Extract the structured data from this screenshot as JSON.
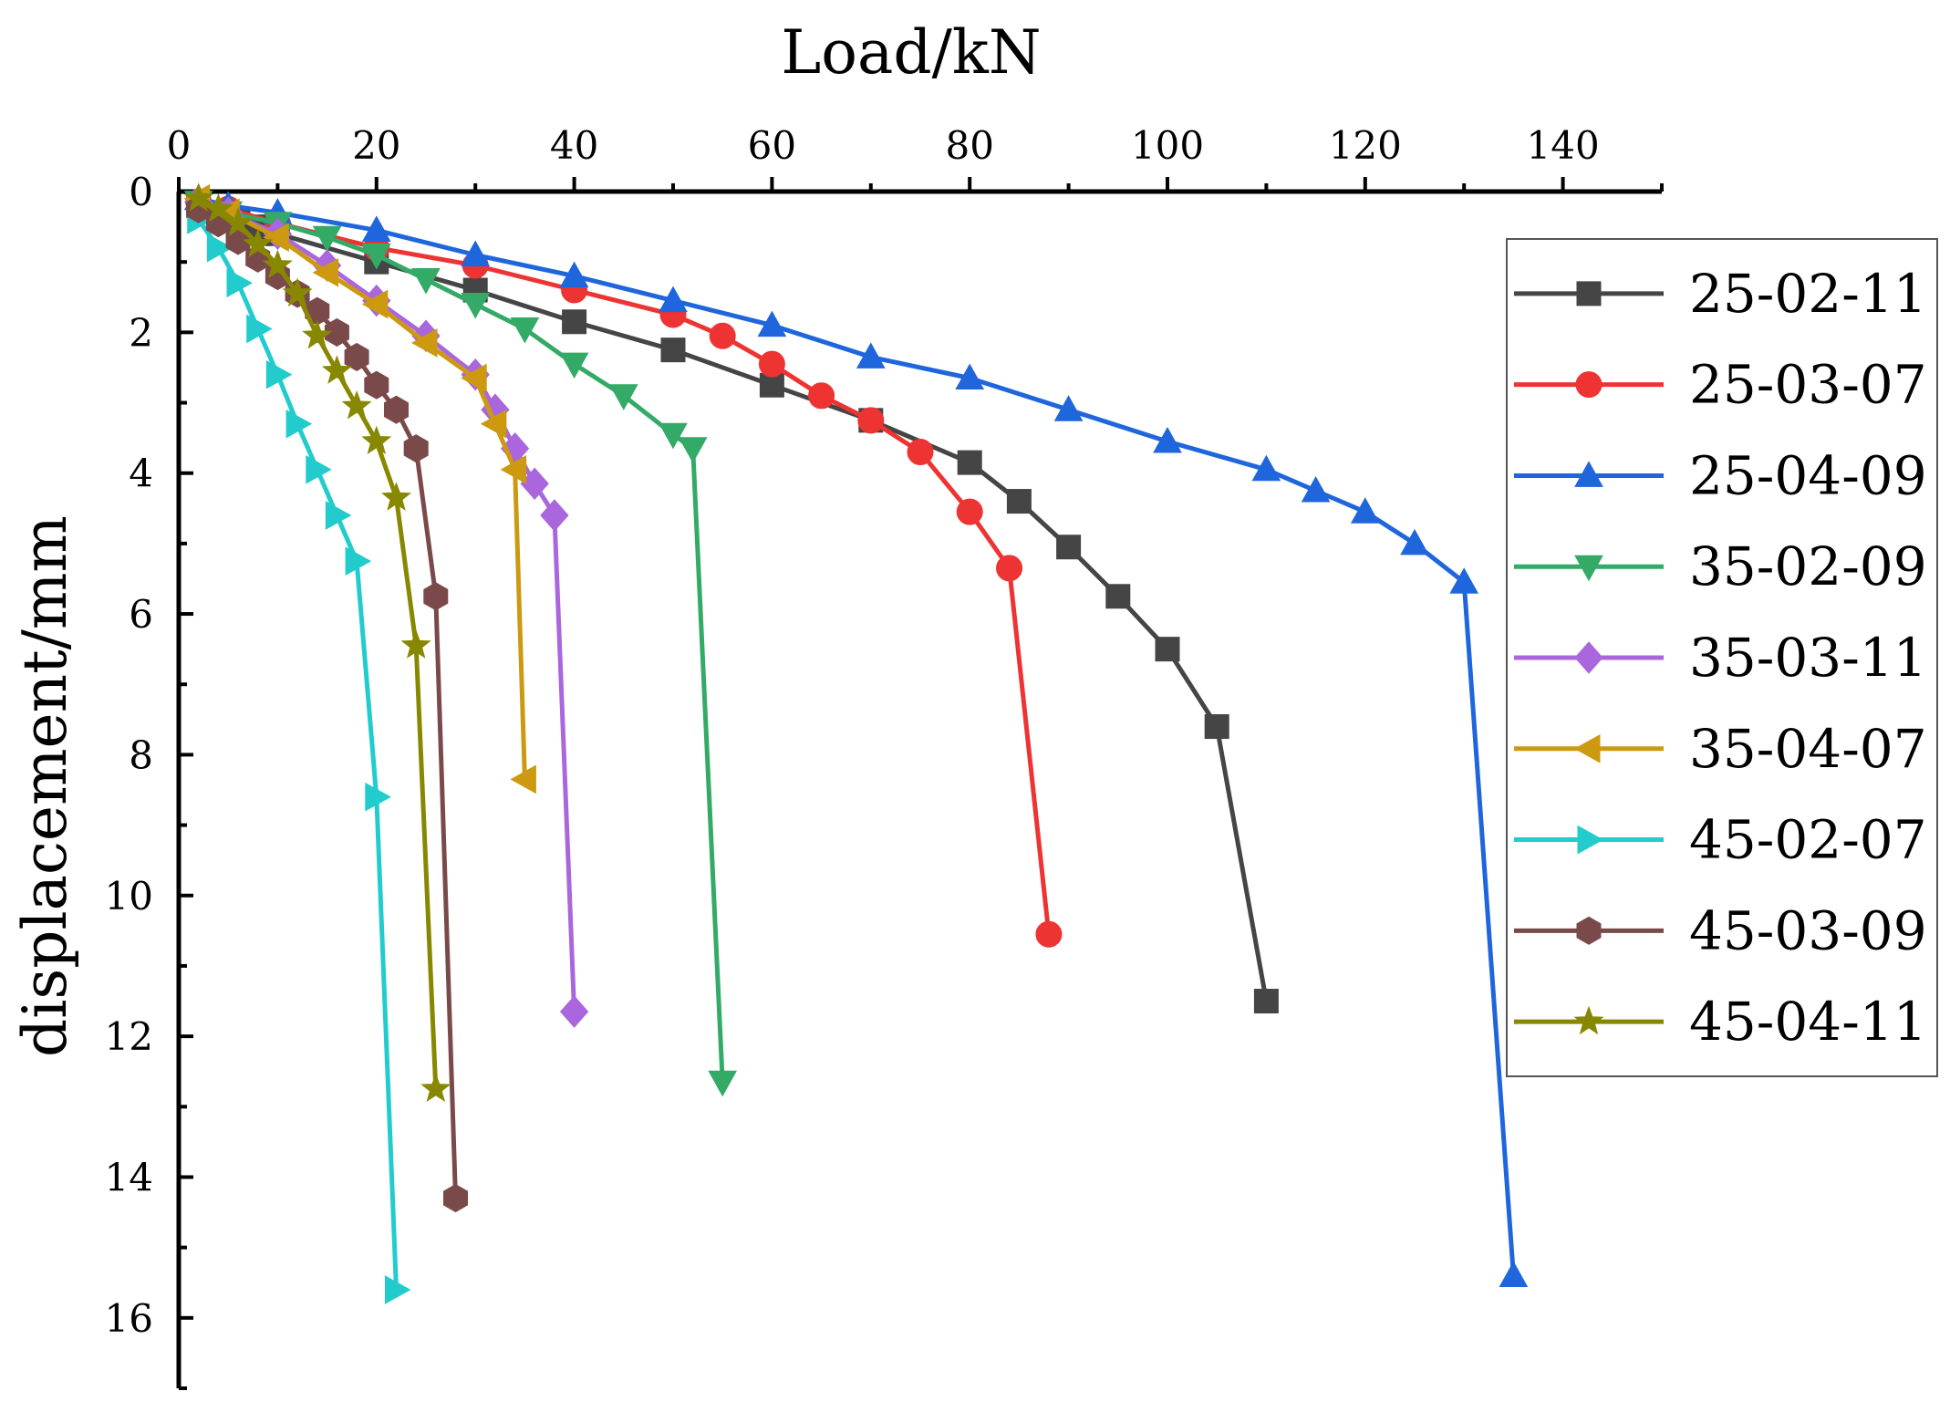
{
  "chart_data": {
    "type": "line",
    "title": "",
    "xlabel": "Load/kN",
    "ylabel": "displacement/mm",
    "xlim": [
      0,
      150
    ],
    "ylim": [
      0,
      17
    ],
    "y_inverted": true,
    "x_axis_position": "top",
    "x_ticks": [
      0,
      20,
      40,
      60,
      80,
      100,
      120,
      140
    ],
    "x_tick_labels": [
      "0",
      "20",
      "40",
      "60",
      "80",
      "100",
      "120",
      "140"
    ],
    "y_ticks": [
      0,
      2,
      4,
      6,
      8,
      10,
      12,
      14,
      16
    ],
    "y_tick_labels": [
      "0",
      "2",
      "4",
      "6",
      "8",
      "10",
      "12",
      "14",
      "16"
    ],
    "grid": false,
    "legend_position": "right",
    "series": [
      {
        "name": "25-02-11",
        "color": "#454545",
        "marker": "square",
        "x": [
          2,
          4,
          6,
          8,
          10,
          20,
          30,
          40,
          50,
          60,
          70,
          80,
          85,
          90,
          95,
          100,
          105,
          110
        ],
        "y": [
          0.2,
          0.3,
          0.4,
          0.5,
          0.6,
          1.0,
          1.4,
          1.85,
          2.25,
          2.75,
          3.25,
          3.85,
          4.4,
          5.05,
          5.75,
          6.5,
          7.6,
          11.5
        ]
      },
      {
        "name": "25-03-07",
        "color": "#ee3333",
        "marker": "circle",
        "x": [
          2,
          5,
          10,
          20,
          30,
          40,
          50,
          55,
          60,
          65,
          70,
          75,
          80,
          84,
          88
        ],
        "y": [
          0.15,
          0.25,
          0.45,
          0.8,
          1.05,
          1.4,
          1.75,
          2.05,
          2.45,
          2.9,
          3.25,
          3.7,
          4.55,
          5.35,
          10.55
        ]
      },
      {
        "name": "25-04-09",
        "color": "#1f66dd",
        "marker": "triangle-up",
        "x": [
          2,
          5,
          10,
          20,
          30,
          40,
          50,
          60,
          70,
          80,
          90,
          100,
          110,
          115,
          120,
          125,
          130,
          135
        ],
        "y": [
          0.1,
          0.2,
          0.3,
          0.55,
          0.9,
          1.2,
          1.55,
          1.9,
          2.35,
          2.65,
          3.1,
          3.55,
          3.95,
          4.25,
          4.55,
          5.0,
          5.55,
          15.4
        ]
      },
      {
        "name": "35-02-09",
        "color": "#33aa66",
        "marker": "triangle-down",
        "x": [
          2,
          5,
          10,
          15,
          20,
          25,
          30,
          35,
          40,
          45,
          50,
          52,
          55
        ],
        "y": [
          0.15,
          0.3,
          0.45,
          0.65,
          0.9,
          1.25,
          1.6,
          1.95,
          2.45,
          2.9,
          3.45,
          3.65,
          12.65
        ]
      },
      {
        "name": "35-03-11",
        "color": "#aa66dd",
        "marker": "diamond",
        "x": [
          2,
          5,
          10,
          15,
          20,
          25,
          30,
          32,
          34,
          36,
          38,
          40
        ],
        "y": [
          0.15,
          0.3,
          0.6,
          1.05,
          1.55,
          2.05,
          2.6,
          3.1,
          3.65,
          4.15,
          4.6,
          11.65
        ]
      },
      {
        "name": "35-04-07",
        "color": "#cc9911",
        "marker": "triangle-left",
        "x": [
          2,
          5,
          10,
          15,
          20,
          25,
          30,
          32,
          34,
          35
        ],
        "y": [
          0.1,
          0.3,
          0.65,
          1.15,
          1.6,
          2.15,
          2.65,
          3.3,
          3.95,
          8.35
        ]
      },
      {
        "name": "45-02-07",
        "color": "#22cccc",
        "marker": "triangle-right",
        "x": [
          2,
          4,
          6,
          8,
          10,
          12,
          14,
          16,
          18,
          20,
          22
        ],
        "y": [
          0.4,
          0.8,
          1.3,
          1.95,
          2.6,
          3.3,
          3.95,
          4.6,
          5.25,
          8.6,
          15.6
        ]
      },
      {
        "name": "45-03-09",
        "color": "#7a4a4a",
        "marker": "hexagon",
        "x": [
          2,
          4,
          6,
          8,
          10,
          12,
          14,
          16,
          18,
          20,
          22,
          24,
          26,
          28
        ],
        "y": [
          0.25,
          0.45,
          0.7,
          0.95,
          1.2,
          1.45,
          1.7,
          2.0,
          2.35,
          2.75,
          3.1,
          3.65,
          5.75,
          14.3
        ]
      },
      {
        "name": "45-04-11",
        "color": "#888800",
        "marker": "star",
        "x": [
          2,
          4,
          6,
          8,
          10,
          12,
          14,
          16,
          18,
          20,
          22,
          24,
          26
        ],
        "y": [
          0.1,
          0.25,
          0.45,
          0.75,
          1.05,
          1.45,
          2.05,
          2.55,
          3.05,
          3.55,
          4.35,
          6.45,
          12.75
        ]
      }
    ]
  }
}
